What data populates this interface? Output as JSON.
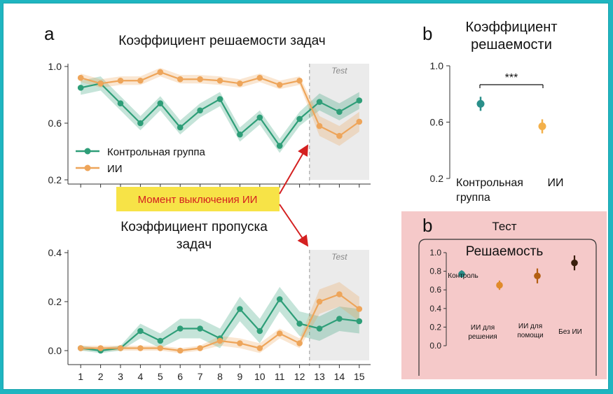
{
  "colors": {
    "control": "#2e9e78",
    "ai": "#eea55a",
    "teal": "#2a8f8a",
    "gold": "#f3b04a",
    "orange": "#e08a2a",
    "brown": "#b35e12",
    "dark": "#3a1e0c",
    "annotation_red": "#d42020",
    "annotation_bg": "#f7e347",
    "panel_pink": "#f5c9c9",
    "test_shade": "#e8e8e8"
  },
  "annotation": {
    "text": "Момент выключения ИИ"
  },
  "chart_data": [
    {
      "type": "line",
      "panel_letter": "a",
      "title": "Коэффициент решаемости задач",
      "test_label": "Test",
      "x": [
        1,
        2,
        3,
        4,
        5,
        6,
        7,
        8,
        9,
        10,
        11,
        12,
        13,
        14,
        15
      ],
      "ylim": [
        0.2,
        1.0
      ],
      "yticks": [
        "0.2",
        "0.6",
        "1.0"
      ],
      "yticks_values": [
        0.2,
        0.6,
        1.0
      ],
      "test_start": 12.5,
      "legend": {
        "placement": "bottom-left",
        "entries": [
          "Контрольная группа",
          "ИИ"
        ]
      },
      "series": [
        {
          "name": "Контрольная группа",
          "color_key": "control",
          "values": [
            0.85,
            0.88,
            0.74,
            0.6,
            0.74,
            0.57,
            0.69,
            0.77,
            0.52,
            0.64,
            0.44,
            0.63,
            0.75,
            0.68,
            0.76
          ],
          "err": [
            0.05,
            0.05,
            0.05,
            0.05,
            0.05,
            0.05,
            0.05,
            0.05,
            0.05,
            0.05,
            0.05,
            0.05,
            0.06,
            0.06,
            0.06
          ]
        },
        {
          "name": "ИИ",
          "color_key": "ai",
          "values": [
            0.92,
            0.88,
            0.9,
            0.9,
            0.96,
            0.91,
            0.91,
            0.9,
            0.88,
            0.92,
            0.87,
            0.9,
            0.58,
            0.51,
            0.61
          ],
          "err": [
            0.03,
            0.03,
            0.03,
            0.03,
            0.03,
            0.03,
            0.03,
            0.03,
            0.03,
            0.03,
            0.03,
            0.03,
            0.07,
            0.07,
            0.07
          ]
        }
      ]
    },
    {
      "type": "line",
      "title": "Коэффициент пропуска задач",
      "test_label": "Test",
      "x": [
        1,
        2,
        3,
        4,
        5,
        6,
        7,
        8,
        9,
        10,
        11,
        12,
        13,
        14,
        15
      ],
      "xticks": [
        "1",
        "2",
        "3",
        "4",
        "5",
        "6",
        "7",
        "8",
        "9",
        "10",
        "11",
        "12",
        "13",
        "14",
        "15"
      ],
      "ylim": [
        -0.04,
        0.4
      ],
      "yticks": [
        "0.0",
        "0.2",
        "0.4"
      ],
      "yticks_values": [
        0.0,
        0.2,
        0.4
      ],
      "test_start": 12.5,
      "series": [
        {
          "name": "Контрольная группа",
          "color_key": "control",
          "values": [
            0.01,
            0.0,
            0.01,
            0.08,
            0.04,
            0.09,
            0.09,
            0.05,
            0.17,
            0.08,
            0.21,
            0.11,
            0.09,
            0.13,
            0.12
          ],
          "err": [
            0.01,
            0.01,
            0.01,
            0.03,
            0.03,
            0.04,
            0.04,
            0.04,
            0.05,
            0.05,
            0.05,
            0.05,
            0.05,
            0.05,
            0.05
          ]
        },
        {
          "name": "ИИ",
          "color_key": "ai",
          "values": [
            0.01,
            0.01,
            0.01,
            0.01,
            0.01,
            0.0,
            0.01,
            0.04,
            0.03,
            0.01,
            0.07,
            0.03,
            0.2,
            0.23,
            0.17
          ],
          "err": [
            0.01,
            0.01,
            0.01,
            0.01,
            0.01,
            0.01,
            0.01,
            0.02,
            0.02,
            0.02,
            0.02,
            0.02,
            0.05,
            0.05,
            0.05
          ]
        }
      ]
    },
    {
      "type": "scatter",
      "panel_letter": "b",
      "title_line1": "Коэффициент",
      "title_line2": "решаемости",
      "ylim": [
        0.2,
        1.0
      ],
      "yticks": [
        "0.2",
        "0.6",
        "1.0"
      ],
      "yticks_values": [
        0.2,
        0.6,
        1.0
      ],
      "significance": "***",
      "categories": [
        "Контрольная группа",
        "ИИ"
      ],
      "category_labels": {
        "control_line1": "Контрольная",
        "control_line2": "группа",
        "ai": "ИИ"
      },
      "points": [
        {
          "category": "Контрольная группа",
          "value": 0.73,
          "err": 0.05,
          "color_key": "teal"
        },
        {
          "category": "ИИ",
          "value": 0.57,
          "err": 0.05,
          "color_key": "gold"
        }
      ]
    },
    {
      "type": "scatter",
      "panel_letter": "b",
      "panel_title": "Тест",
      "title": "Решаемость",
      "ylim": [
        0.0,
        1.0
      ],
      "yticks": [
        "0.0",
        "0.2",
        "0.4",
        "0.6",
        "0.8",
        "1.0"
      ],
      "yticks_values": [
        0.0,
        0.2,
        0.4,
        0.6,
        0.8,
        1.0
      ],
      "labels": {
        "control": "Контроль",
        "ai_solve_1": "ИИ для",
        "ai_solve_2": "решения",
        "ai_help_1": "ИИ для",
        "ai_help_2": "помощи",
        "no_ai": "Без ИИ"
      },
      "points": [
        {
          "category": "Контроль",
          "value": 0.77,
          "err": 0.04,
          "color_key": "teal"
        },
        {
          "category": "ИИ для решения",
          "value": 0.65,
          "err": 0.05,
          "color_key": "orange"
        },
        {
          "category": "ИИ для помощи",
          "value": 0.75,
          "err": 0.08,
          "color_key": "brown"
        },
        {
          "category": "Без ИИ",
          "value": 0.89,
          "err": 0.08,
          "color_key": "dark"
        }
      ]
    }
  ]
}
